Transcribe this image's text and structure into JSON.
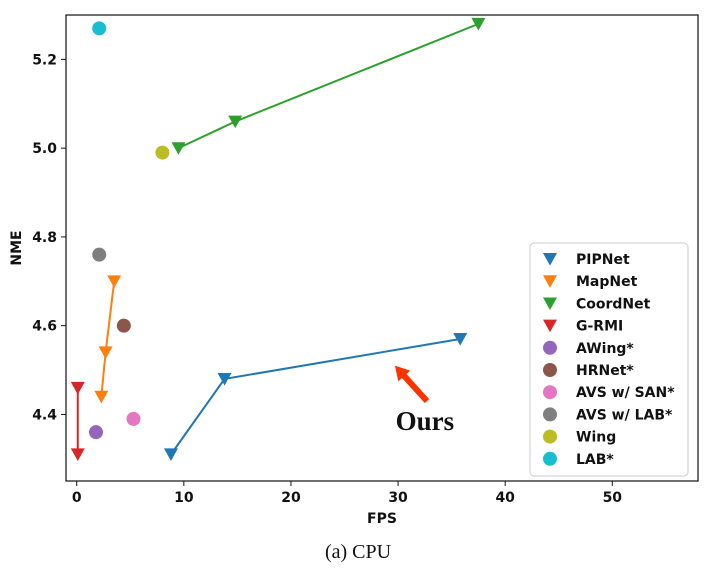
{
  "chart_data": {
    "type": "scatter",
    "title": "",
    "xlabel": "FPS",
    "ylabel": "NME",
    "xlim": [
      -1,
      58
    ],
    "ylim": [
      4.25,
      5.3
    ],
    "xticks": [
      0,
      10,
      20,
      30,
      40,
      50
    ],
    "xtick_labels": [
      "0",
      "10",
      "20",
      "30",
      "40",
      "50"
    ],
    "yticks": [
      4.4,
      4.6,
      4.8,
      5.0,
      5.2
    ],
    "ytick_labels": [
      "4.4",
      "4.6",
      "4.8",
      "5.0",
      "5.2"
    ],
    "grid": false,
    "legend_position": "bottom-right",
    "series": [
      {
        "name": "PIPNet",
        "color": "#1f77b4",
        "marker": "triangle-down",
        "line": true,
        "x": [
          8.8,
          13.8,
          35.8
        ],
        "y": [
          4.31,
          4.48,
          4.57
        ]
      },
      {
        "name": "MapNet",
        "color": "#ff7f0e",
        "marker": "triangle-down",
        "line": true,
        "x": [
          2.3,
          2.7,
          3.5
        ],
        "y": [
          4.44,
          4.54,
          4.7
        ]
      },
      {
        "name": "CoordNet",
        "color": "#2ca02c",
        "marker": "triangle-down",
        "line": true,
        "x": [
          9.5,
          14.8,
          37.5
        ],
        "y": [
          5.0,
          5.06,
          5.28
        ]
      },
      {
        "name": "G-RMI",
        "color": "#d62728",
        "marker": "triangle-down",
        "line": true,
        "x": [
          0.1,
          0.1
        ],
        "y": [
          4.46,
          4.31
        ]
      },
      {
        "name": "AWing*",
        "color": "#9467bd",
        "marker": "circle",
        "line": false,
        "x": [
          1.8
        ],
        "y": [
          4.36
        ]
      },
      {
        "name": "HRNet*",
        "color": "#8c564b",
        "marker": "circle",
        "line": false,
        "x": [
          4.4
        ],
        "y": [
          4.6
        ]
      },
      {
        "name": "AVS w/ SAN*",
        "color": "#e377c2",
        "marker": "circle",
        "line": false,
        "x": [
          5.3
        ],
        "y": [
          4.39
        ]
      },
      {
        "name": "AVS w/ LAB*",
        "color": "#7f7f7f",
        "marker": "circle",
        "line": false,
        "x": [
          2.1
        ],
        "y": [
          4.76
        ]
      },
      {
        "name": "Wing",
        "color": "#bcbd22",
        "marker": "circle",
        "line": false,
        "x": [
          8.0
        ],
        "y": [
          4.99
        ]
      },
      {
        "name": "LAB*",
        "color": "#17becf",
        "marker": "circle",
        "line": false,
        "x": [
          2.1
        ],
        "y": [
          5.27
        ]
      }
    ],
    "annotations": [
      {
        "text": "Ours",
        "arrow_color": "#ff3300",
        "x": 32.5,
        "y": 4.385,
        "arrow_from": [
          32.7,
          4.43
        ],
        "arrow_to": [
          29.7,
          4.51
        ]
      }
    ]
  },
  "caption": "(a)  CPU"
}
